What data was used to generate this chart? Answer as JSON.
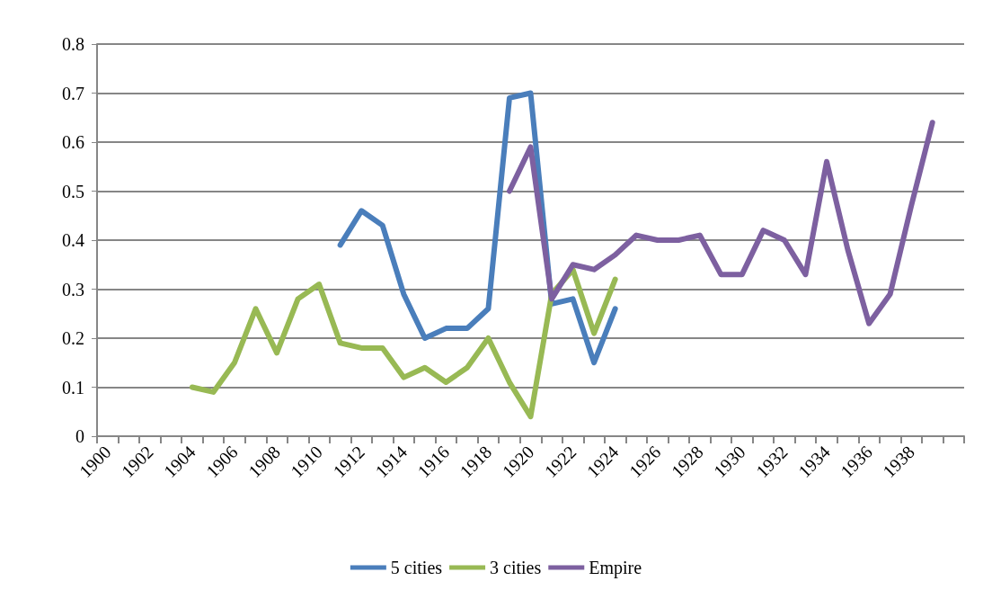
{
  "chart_data": {
    "type": "line",
    "categories": [
      "1900",
      null,
      "1902",
      null,
      "1904",
      null,
      "1906",
      null,
      "1908",
      null,
      "1910",
      null,
      "1912",
      null,
      "1914",
      null,
      "1916",
      null,
      "1918",
      null,
      "1920",
      null,
      "1922",
      null,
      "1924",
      null,
      "1926",
      null,
      "1928",
      null,
      "1930",
      null,
      "1932",
      null,
      "1934",
      null,
      "1936",
      null,
      "1938",
      null,
      null
    ],
    "series": [
      {
        "name": "5 cities",
        "color": "#4a7ebb",
        "values": [
          null,
          null,
          null,
          null,
          null,
          null,
          null,
          null,
          null,
          null,
          null,
          0.39,
          0.46,
          0.43,
          0.29,
          0.2,
          0.22,
          0.22,
          0.26,
          0.69,
          0.7,
          0.27,
          0.28,
          0.15,
          0.26,
          null,
          null,
          null,
          null,
          null,
          null,
          null,
          null,
          null,
          null,
          null,
          null,
          null,
          null,
          null,
          null
        ]
      },
      {
        "name": "3 cities",
        "color": "#98b954",
        "values": [
          null,
          null,
          null,
          null,
          0.1,
          0.09,
          0.15,
          0.26,
          0.17,
          0.28,
          0.31,
          0.19,
          0.18,
          0.18,
          0.12,
          0.14,
          0.11,
          0.14,
          0.2,
          0.11,
          0.04,
          0.29,
          0.34,
          0.21,
          0.32,
          null,
          null,
          null,
          null,
          null,
          null,
          null,
          null,
          null,
          null,
          null,
          null,
          null,
          null,
          null,
          null
        ]
      },
      {
        "name": "Empire",
        "color": "#7d60a0",
        "values": [
          null,
          null,
          null,
          null,
          null,
          null,
          null,
          null,
          null,
          null,
          null,
          null,
          null,
          null,
          null,
          null,
          null,
          null,
          null,
          0.5,
          0.59,
          0.28,
          0.35,
          0.34,
          0.37,
          0.41,
          0.4,
          0.4,
          0.41,
          0.33,
          0.33,
          0.42,
          0.4,
          0.33,
          0.56,
          0.38,
          0.23,
          0.29,
          0.47,
          0.64,
          null
        ]
      }
    ],
    "ylim": [
      0,
      0.8
    ],
    "yticks": [
      0,
      0.1,
      0.2,
      0.3,
      0.4,
      0.5,
      0.6,
      0.7,
      0.8
    ],
    "grid": "y",
    "legend": "bottom",
    "marker": "none",
    "line_style": "solid"
  }
}
